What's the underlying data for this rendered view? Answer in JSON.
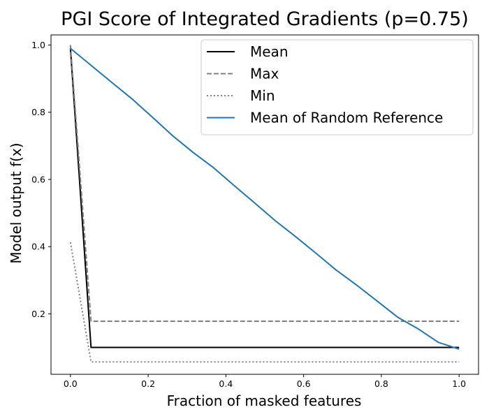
{
  "chart_data": {
    "type": "line",
    "title": "PGI Score of Integrated Gradients (p=0.75)",
    "xlabel": "Fraction of masked features",
    "ylabel": "Model output f(x)",
    "xlim": [
      -0.05,
      1.05
    ],
    "ylim": [
      0.02,
      1.03
    ],
    "xticks": [
      0.0,
      0.2,
      0.4,
      0.6,
      0.8,
      1.0
    ],
    "xtick_labels": [
      "0.0",
      "0.2",
      "0.4",
      "0.6",
      "0.8",
      "1.0"
    ],
    "yticks": [
      0.2,
      0.4,
      0.6,
      0.8,
      1.0
    ],
    "ytick_labels": [
      "0.2",
      "0.4",
      "0.6",
      "0.8",
      "1.0"
    ],
    "grid": false,
    "legend_position": "top-right",
    "series": [
      {
        "name": "Mean",
        "color": "#000000",
        "style": "solid",
        "x": [
          0.0,
          0.053,
          1.0
        ],
        "y": [
          0.99,
          0.1,
          0.1
        ]
      },
      {
        "name": "Max",
        "color": "#808080",
        "style": "dashed",
        "x": [
          0.0,
          0.053,
          1.0
        ],
        "y": [
          1.0,
          0.178,
          0.178
        ]
      },
      {
        "name": "Min",
        "color": "#808080",
        "style": "dotted",
        "x": [
          0.0,
          0.053,
          1.0
        ],
        "y": [
          0.413,
          0.057,
          0.057
        ]
      },
      {
        "name": "Mean of Random Reference",
        "color": "#1f77b4",
        "style": "solid",
        "x": [
          0.0,
          0.105,
          0.158,
          0.211,
          0.263,
          0.316,
          0.368,
          0.421,
          0.474,
          0.526,
          0.579,
          0.632,
          0.684,
          0.737,
          0.789,
          0.842,
          0.895,
          0.947,
          1.0
        ],
        "y": [
          0.99,
          0.89,
          0.84,
          0.785,
          0.73,
          0.68,
          0.635,
          0.582,
          0.53,
          0.478,
          0.43,
          0.38,
          0.33,
          0.285,
          0.238,
          0.19,
          0.155,
          0.115,
          0.095
        ]
      }
    ]
  }
}
